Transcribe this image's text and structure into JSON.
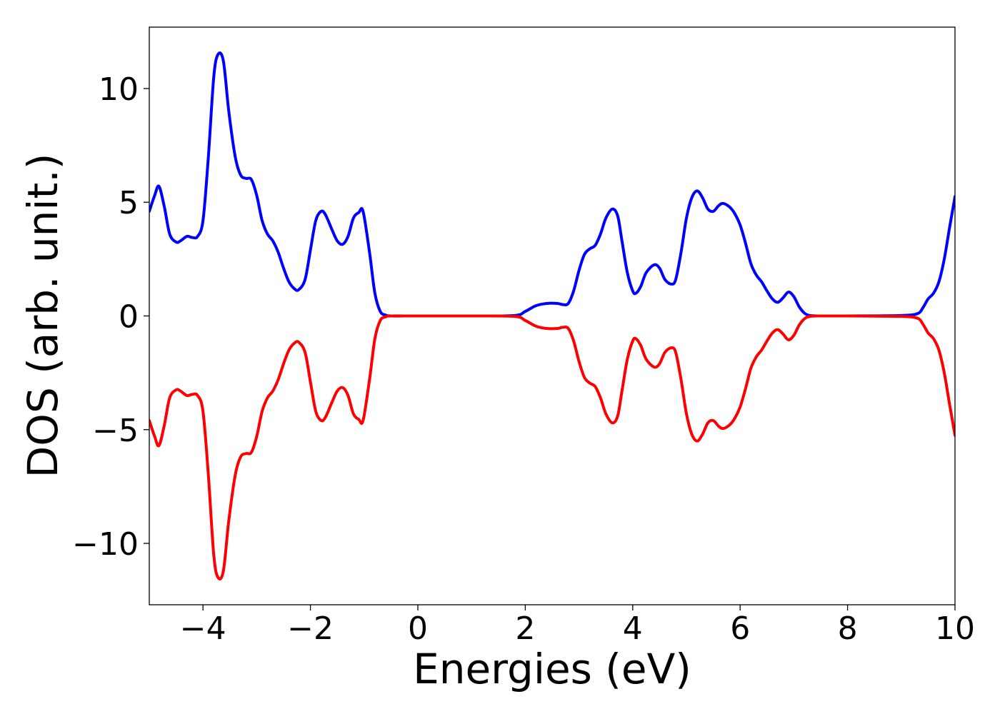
{
  "chart_data": {
    "type": "line",
    "xlabel": "Energies (eV)",
    "ylabel": "DOS (arb. unit.)",
    "xlim": [
      -5,
      10
    ],
    "ylim": [
      -12.7,
      12.7
    ],
    "xticks": [
      -4,
      -2,
      0,
      2,
      4,
      6,
      8,
      10
    ],
    "xtick_labels": [
      "−4",
      "−2",
      "0",
      "2",
      "4",
      "6",
      "8",
      "10"
    ],
    "yticks": [
      -10,
      -5,
      0,
      5,
      10
    ],
    "ytick_labels": [
      "−10",
      "−5",
      "0",
      "5",
      "10"
    ],
    "grid": false,
    "legend": "none",
    "series": [
      {
        "color": "#0000ff",
        "x": [
          -5.0,
          -4.9,
          -4.82,
          -4.72,
          -4.62,
          -4.5,
          -4.42,
          -4.3,
          -4.2,
          -4.1,
          -4.0,
          -3.9,
          -3.8,
          -3.72,
          -3.62,
          -3.52,
          -3.4,
          -3.3,
          -3.2,
          -3.1,
          -3.0,
          -2.9,
          -2.8,
          -2.7,
          -2.6,
          -2.5,
          -2.4,
          -2.3,
          -2.22,
          -2.1,
          -2.0,
          -1.9,
          -1.8,
          -1.72,
          -1.6,
          -1.5,
          -1.4,
          -1.3,
          -1.2,
          -1.1,
          -1.02,
          -0.9,
          -0.8,
          -0.7,
          -0.6,
          -0.5,
          0.0,
          1.0,
          1.8,
          2.0,
          2.2,
          2.4,
          2.6,
          2.7,
          2.8,
          2.9,
          3.0,
          3.1,
          3.2,
          3.3,
          3.4,
          3.5,
          3.62,
          3.72,
          3.8,
          3.9,
          4.0,
          4.06,
          4.15,
          4.25,
          4.4,
          4.5,
          4.6,
          4.72,
          4.8,
          4.9,
          5.0,
          5.1,
          5.2,
          5.3,
          5.4,
          5.5,
          5.6,
          5.68,
          5.8,
          5.9,
          6.0,
          6.1,
          6.2,
          6.3,
          6.4,
          6.5,
          6.6,
          6.7,
          6.8,
          6.9,
          7.0,
          7.1,
          7.2,
          7.3,
          7.5,
          8.0,
          9.0,
          9.3,
          9.4,
          9.5,
          9.6,
          9.7,
          9.8,
          9.9,
          10.0
        ],
        "y": [
          4.6,
          5.3,
          5.7,
          4.8,
          3.6,
          3.25,
          3.3,
          3.5,
          3.45,
          3.5,
          4.2,
          7.0,
          10.5,
          11.5,
          11.2,
          9.0,
          7.0,
          6.2,
          6.05,
          6.0,
          5.3,
          4.2,
          3.6,
          3.3,
          2.8,
          2.1,
          1.5,
          1.2,
          1.15,
          1.6,
          2.9,
          4.2,
          4.6,
          4.45,
          3.8,
          3.3,
          3.15,
          3.5,
          4.3,
          4.55,
          4.6,
          2.8,
          1.0,
          0.2,
          0.04,
          0.0,
          0.0,
          0.0,
          0.02,
          0.2,
          0.45,
          0.55,
          0.55,
          0.5,
          0.55,
          1.1,
          2.0,
          2.7,
          2.95,
          3.1,
          3.6,
          4.3,
          4.7,
          4.4,
          3.3,
          1.9,
          1.1,
          1.0,
          1.3,
          1.9,
          2.25,
          2.1,
          1.6,
          1.4,
          1.6,
          2.8,
          4.3,
          5.2,
          5.5,
          5.2,
          4.7,
          4.6,
          4.85,
          4.95,
          4.8,
          4.5,
          4.0,
          3.2,
          2.3,
          1.8,
          1.5,
          1.1,
          0.75,
          0.6,
          0.8,
          1.05,
          0.85,
          0.4,
          0.12,
          0.02,
          0.0,
          0.0,
          0.02,
          0.1,
          0.35,
          0.75,
          1.0,
          1.5,
          2.5,
          3.9,
          5.25
        ]
      },
      {
        "color": "#ff0000",
        "x": [
          -5.0,
          -4.9,
          -4.82,
          -4.72,
          -4.62,
          -4.5,
          -4.42,
          -4.3,
          -4.2,
          -4.1,
          -4.0,
          -3.9,
          -3.8,
          -3.72,
          -3.62,
          -3.52,
          -3.4,
          -3.3,
          -3.2,
          -3.1,
          -3.0,
          -2.9,
          -2.8,
          -2.7,
          -2.6,
          -2.5,
          -2.4,
          -2.3,
          -2.22,
          -2.1,
          -2.0,
          -1.9,
          -1.8,
          -1.72,
          -1.6,
          -1.5,
          -1.4,
          -1.3,
          -1.2,
          -1.1,
          -1.02,
          -0.9,
          -0.8,
          -0.7,
          -0.6,
          -0.5,
          0.0,
          1.0,
          1.8,
          2.0,
          2.2,
          2.4,
          2.6,
          2.7,
          2.8,
          2.9,
          3.0,
          3.1,
          3.2,
          3.3,
          3.4,
          3.5,
          3.62,
          3.72,
          3.8,
          3.9,
          4.0,
          4.06,
          4.15,
          4.25,
          4.4,
          4.5,
          4.6,
          4.72,
          4.8,
          4.9,
          5.0,
          5.1,
          5.2,
          5.3,
          5.4,
          5.5,
          5.6,
          5.68,
          5.8,
          5.9,
          6.0,
          6.1,
          6.2,
          6.3,
          6.4,
          6.5,
          6.6,
          6.7,
          6.8,
          6.9,
          7.0,
          7.1,
          7.2,
          7.3,
          7.5,
          8.0,
          9.0,
          9.3,
          9.4,
          9.5,
          9.6,
          9.7,
          9.8,
          9.9,
          10.0
        ],
        "y": [
          -4.6,
          -5.3,
          -5.7,
          -4.8,
          -3.6,
          -3.25,
          -3.3,
          -3.5,
          -3.45,
          -3.5,
          -4.2,
          -7.0,
          -10.5,
          -11.5,
          -11.2,
          -9.0,
          -7.0,
          -6.2,
          -6.05,
          -6.0,
          -5.3,
          -4.2,
          -3.6,
          -3.3,
          -2.8,
          -2.1,
          -1.5,
          -1.2,
          -1.15,
          -1.6,
          -2.9,
          -4.2,
          -4.6,
          -4.45,
          -3.8,
          -3.3,
          -3.15,
          -3.5,
          -4.3,
          -4.55,
          -4.6,
          -2.8,
          -1.0,
          -0.2,
          -0.04,
          0.0,
          0.0,
          0.0,
          -0.02,
          -0.2,
          -0.45,
          -0.55,
          -0.55,
          -0.5,
          -0.55,
          -1.1,
          -2.0,
          -2.7,
          -2.95,
          -3.1,
          -3.6,
          -4.3,
          -4.7,
          -4.4,
          -3.3,
          -1.9,
          -1.1,
          -1.0,
          -1.3,
          -1.9,
          -2.25,
          -2.1,
          -1.6,
          -1.4,
          -1.6,
          -2.8,
          -4.3,
          -5.2,
          -5.5,
          -5.2,
          -4.7,
          -4.6,
          -4.85,
          -4.95,
          -4.8,
          -4.5,
          -4.0,
          -3.2,
          -2.3,
          -1.8,
          -1.5,
          -1.1,
          -0.75,
          -0.6,
          -0.8,
          -1.05,
          -0.85,
          -0.4,
          -0.12,
          -0.02,
          0.0,
          0.0,
          -0.02,
          -0.1,
          -0.35,
          -0.75,
          -1.0,
          -1.5,
          -2.5,
          -3.9,
          -5.25
        ]
      }
    ]
  }
}
